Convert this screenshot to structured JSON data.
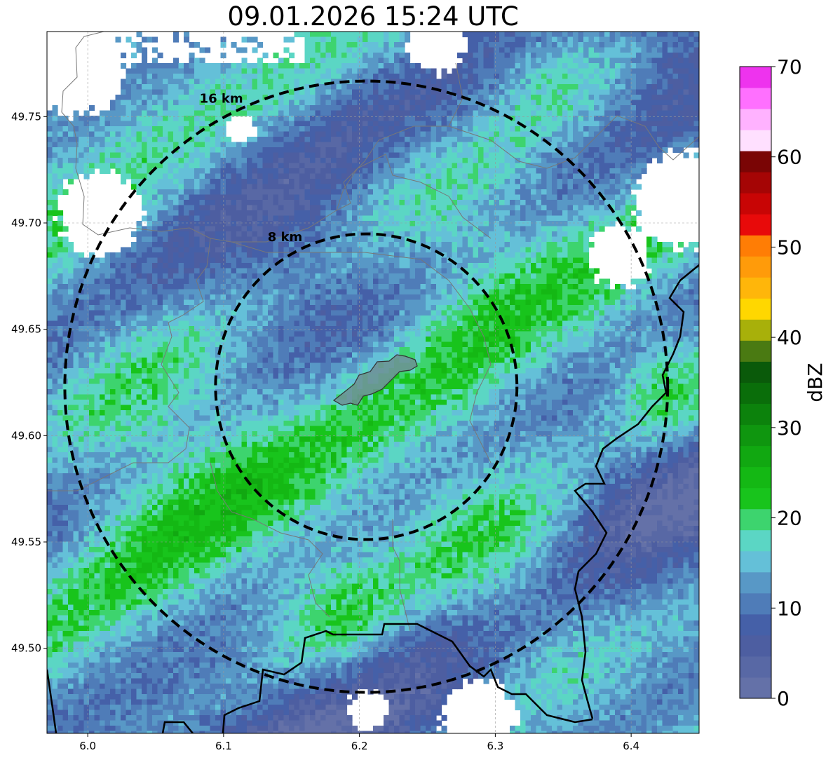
{
  "title": "09.01.2026 15:24 UTC",
  "map": {
    "lon_range": [
      5.97,
      6.45
    ],
    "lat_range": [
      49.46,
      49.79
    ],
    "center": {
      "lon": 6.205,
      "lat": 49.623
    },
    "x_ticks": [
      {
        "value": 6.0,
        "label": "6.0"
      },
      {
        "value": 6.1,
        "label": "6.1"
      },
      {
        "value": 6.2,
        "label": "6.2"
      },
      {
        "value": 6.3,
        "label": "6.3"
      },
      {
        "value": 6.4,
        "label": "6.4"
      }
    ],
    "y_ticks": [
      {
        "value": 49.5,
        "label": "49.50"
      },
      {
        "value": 49.55,
        "label": "49.55"
      },
      {
        "value": 49.6,
        "label": "49.60"
      },
      {
        "value": 49.65,
        "label": "49.65"
      },
      {
        "value": 49.7,
        "label": "49.70"
      },
      {
        "value": 49.75,
        "label": "49.75"
      }
    ],
    "range_rings": [
      {
        "radius_km": 8,
        "label": "8 km"
      },
      {
        "radius_km": 16,
        "label": "16 km"
      }
    ],
    "grid": true,
    "colorbar": {
      "label": "dBZ",
      "min": 0,
      "max": 70,
      "ticks": [
        {
          "value": 0,
          "label": "0"
        },
        {
          "value": 10,
          "label": "10"
        },
        {
          "value": 20,
          "label": "20"
        },
        {
          "value": 30,
          "label": "30"
        },
        {
          "value": 40,
          "label": "40"
        },
        {
          "value": 50,
          "label": "50"
        },
        {
          "value": 60,
          "label": "60"
        },
        {
          "value": 70,
          "label": "70"
        }
      ],
      "colors": [
        "#6471a8",
        "#5868a5",
        "#4d5ea1",
        "#4560a8",
        "#4f7cb8",
        "#5898c6",
        "#64c0d8",
        "#5bd6c4",
        "#3dd46e",
        "#18c41c",
        "#14b814",
        "#11a811",
        "#0f960f",
        "#0c820c",
        "#0a6e0a",
        "#0a5a0a",
        "#4a7a12",
        "#a8b00a",
        "#ffd700",
        "#ffb60a",
        "#ff9b0a",
        "#ff7d05",
        "#e80a0a",
        "#c80505",
        "#a50505",
        "#7a0505",
        "#ffe0ff",
        "#ffb2ff",
        "#ff70ff",
        "#ee33ee"
      ]
    }
  }
}
